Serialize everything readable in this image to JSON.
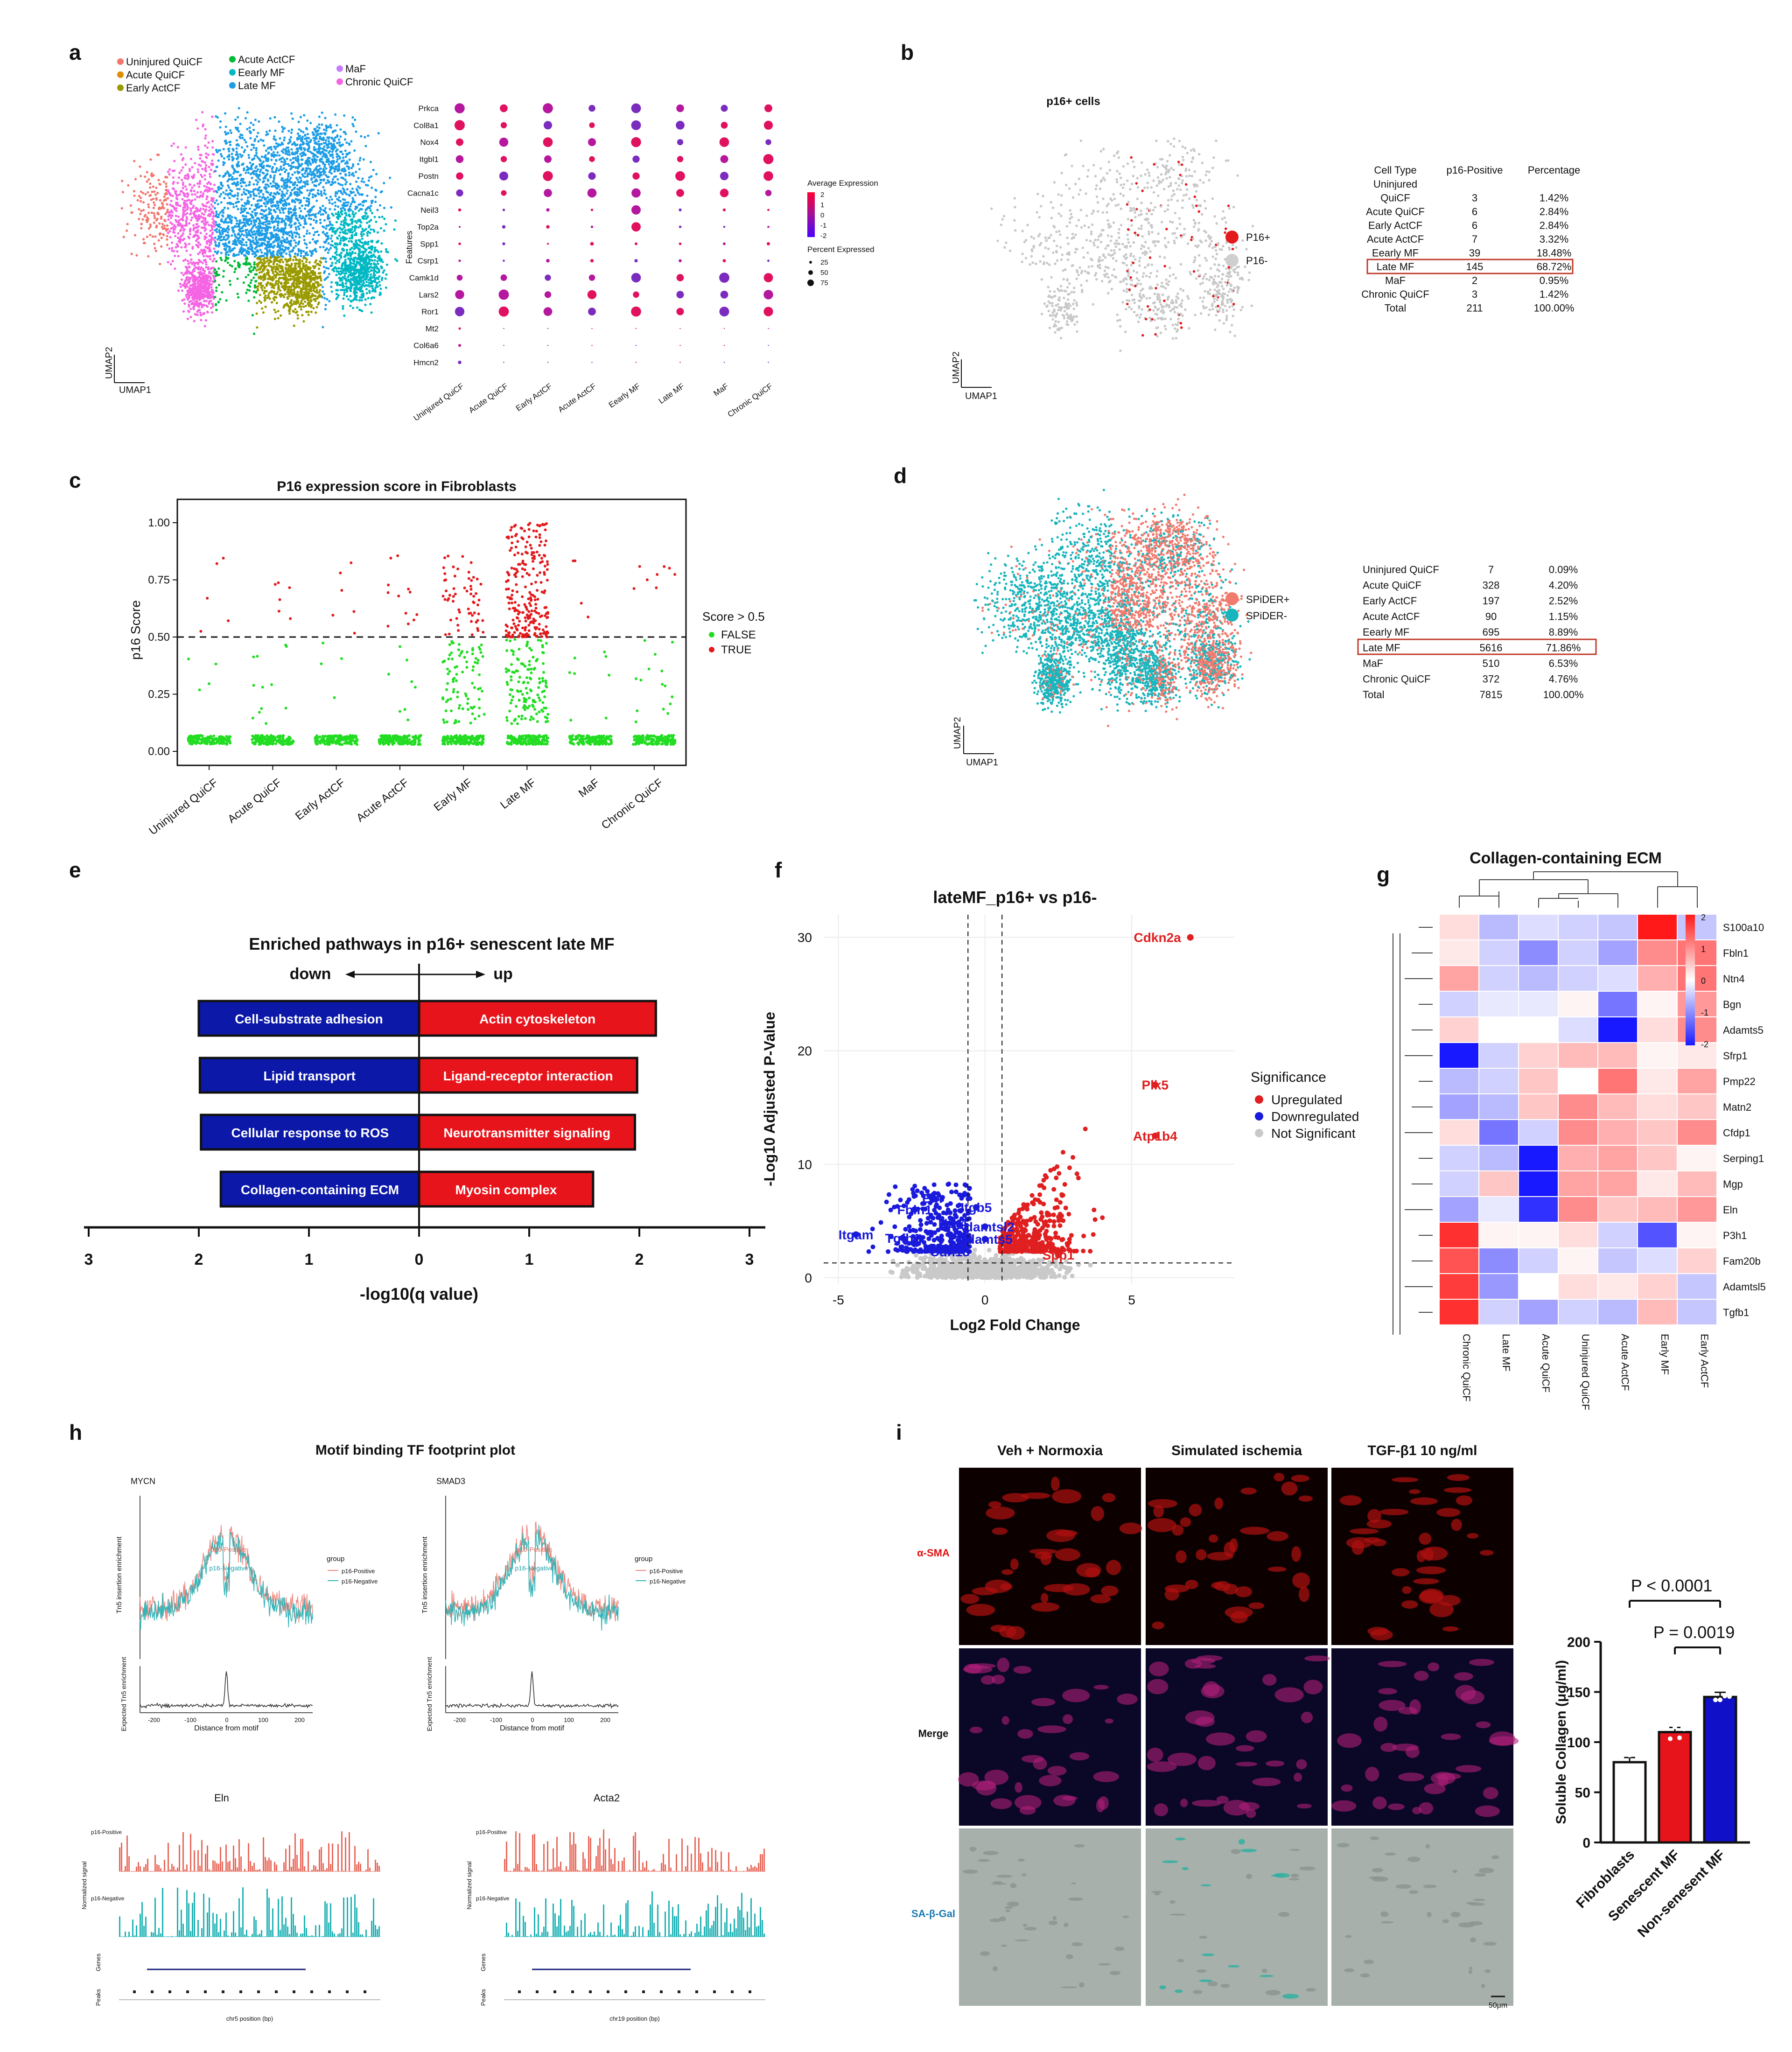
{
  "panels": {
    "a": "a",
    "b": "b",
    "c": "c",
    "d": "d",
    "e": "e",
    "f": "f",
    "g": "g",
    "h": "h",
    "i": "i"
  },
  "panel_a": {
    "legend": [
      "Uninjured QuiCF",
      "Acute QuiCF",
      "Early ActCF",
      "Acute ActCF",
      "Eearly MF",
      "Late MF",
      "MaF",
      "Chronic QuiCF"
    ],
    "legend_colors": [
      "#f2766d",
      "#de8c00",
      "#9a9a00",
      "#00ba38",
      "#00b8c3",
      "#1e9de6",
      "#c77cff",
      "#f564e3"
    ],
    "umap_x": "UMAP1",
    "umap_y": "UMAP2",
    "dot_genes": [
      "Prkca",
      "Col8a1",
      "Nox4",
      "Itgbl1",
      "Postn",
      "Cacna1c",
      "Neil3",
      "Top2a",
      "Spp1",
      "Csrp1",
      "Camk1d",
      "Lars2",
      "Ror1",
      "Mt2",
      "Col6a6",
      "Hmcn2"
    ],
    "dot_groups": [
      "Uninjured QuiCF",
      "Acute QuiCF",
      "Early ActCF",
      "Acute ActCF",
      "Eearly MF",
      "Late MF",
      "MaF",
      "Chronic QuiCF"
    ],
    "features_label": "Features",
    "avg_expr_title": "Average Expression",
    "avg_expr_ticks": [
      "2",
      "1",
      "0",
      "-1",
      "-2"
    ],
    "pct_title": "Percent Expressed",
    "pct_ticks": [
      "25",
      "50",
      "75"
    ]
  },
  "panel_b": {
    "title": "p16+ cells",
    "legend": [
      "P16+",
      "P16-"
    ],
    "umap_x": "UMAP1",
    "umap_y": "UMAP2",
    "table_header": [
      "Cell Type",
      "p16-Positive",
      "Percentage"
    ],
    "table_rows": [
      [
        "Uninjured",
        "",
        ""
      ],
      [
        "QuiCF",
        "3",
        "1.42%"
      ],
      [
        "Acute QuiCF",
        "6",
        "2.84%"
      ],
      [
        "Early ActCF",
        "6",
        "2.84%"
      ],
      [
        "Acute ActCF",
        "7",
        "3.32%"
      ],
      [
        "Eearly MF",
        "39",
        "18.48%"
      ],
      [
        "Late MF",
        "145",
        "68.72%"
      ],
      [
        "MaF",
        "2",
        "0.95%"
      ],
      [
        "Chronic QuiCF",
        "3",
        "1.42%"
      ],
      [
        "Total",
        "211",
        "100.00%"
      ]
    ]
  },
  "panel_d": {
    "legend": [
      "SPiDER+",
      "SPiDER-"
    ],
    "umap_x": "UMAP1",
    "umap_y": "UMAP2",
    "table_rows": [
      [
        "Uninjured QuiCF",
        "7",
        "0.09%"
      ],
      [
        "Acute QuiCF",
        "328",
        "4.20%"
      ],
      [
        "Early ActCF",
        "197",
        "2.52%"
      ],
      [
        "Acute ActCF",
        "90",
        "1.15%"
      ],
      [
        "Eearly MF",
        "695",
        "8.89%"
      ],
      [
        "Late MF",
        "5616",
        "71.86%"
      ],
      [
        "MaF",
        "510",
        "6.53%"
      ],
      [
        "Chronic QuiCF",
        "372",
        "4.76%"
      ],
      [
        "Total",
        "7815",
        "100.00%"
      ]
    ]
  },
  "panel_e": {
    "title": "Enriched pathways in p16+ senescent late MF",
    "down_label": "down",
    "up_label": "up",
    "xlabel": "-log10(q value)"
  },
  "panel_f": {
    "title": "lateMF_p16+ vs p16-",
    "xlabel": "Log2 Fold Change",
    "ylabel": "-Log10 Adjusted P-Value",
    "legend_title": "Significance",
    "legend": [
      "Upregulated",
      "Downregulated",
      "Not Significant"
    ],
    "up_genes": [
      "Cdkn2a",
      "Plk5",
      "Atp1b4",
      "Spp1"
    ],
    "down_genes": [
      "Eln",
      "Fbln1",
      "Itgb5",
      "Ntn4",
      "Adamtsl2",
      "Itgam",
      "Tgfb1",
      "Adamts5",
      "Cdh13"
    ]
  },
  "panel_g": {
    "title": "Collagen-containing ECM",
    "rows": [
      "S100a10",
      "Fbln1",
      "Ntn4",
      "Bgn",
      "Adamts5",
      "Sfrp1",
      "Pmp22",
      "Matn2",
      "Cfdp1",
      "Serping1",
      "Mgp",
      "Eln",
      "P3h1",
      "Fam20b",
      "Adamtsl5",
      "Tgfb1"
    ],
    "cols": [
      "Chronic QuiCF",
      "Late MF",
      "Acute QuiCF",
      "Uninjured QuiCF",
      "Acute ActCF",
      "Early MF",
      "Early ActCF"
    ],
    "scale_ticks": [
      "2",
      "1",
      "0",
      "-1",
      "-2"
    ]
  },
  "panel_h": {
    "title": "Motif binding TF footprint plot",
    "motif1": "MYCN",
    "motif2": "SMAD3",
    "xlabel": "Distance from motif",
    "ylabel_top": "Tn5 insertion enrichment",
    "ylabel_bottom": "Expected Tn5 enrichment",
    "legend_title": "group",
    "legend": [
      "p16-Positive",
      "p16-Negative"
    ],
    "track1": "Eln",
    "track2": "Acta2",
    "track_pos": "p16-Positive",
    "track_neg": "p16-Negative",
    "genes_label": "Genes",
    "peaks_label": "Peaks",
    "chr1_label": "chr5 position (bp)",
    "chr2_label": "chr19 position (bp)",
    "norm_label": "Normalized signal"
  },
  "panel_i": {
    "columns": [
      "Veh + Normoxia",
      "Simulated ischemia",
      "TGF-β1 10 ng/ml"
    ],
    "rows": [
      "α-SMA",
      "Merge",
      "SA-β-Gal"
    ],
    "scale_bar": "50μm",
    "bar_ylabel": "Soluble Collagen (μg/ml)",
    "p1": "P < 0.0001",
    "p2": "P = 0.0019"
  },
  "chart_data": [
    {
      "type": "scatter",
      "title": "P16 expression score in Fibroblasts",
      "xlabel": "",
      "ylabel": "p16 Score",
      "categories": [
        "Uninjured QuiCF",
        "Acute QuiCF",
        "Early ActCF",
        "Acute ActCF",
        "Early MF",
        "Late MF",
        "MaF",
        "Chronic QuiCF"
      ],
      "ylim": [
        0,
        1.0
      ],
      "yticks": [
        "0.00",
        "0.25",
        "0.50",
        "0.75",
        "1.00"
      ],
      "threshold": 0.5,
      "legend_title": "Score > 0.5",
      "legend": [
        "FALSE",
        "TRUE"
      ],
      "true_counts": [
        5,
        6,
        6,
        12,
        60,
        250,
        4,
        8
      ],
      "false_counts": [
        4,
        12,
        4,
        8,
        90,
        140,
        8,
        15
      ]
    },
    {
      "type": "bar",
      "title": "Enriched pathways in p16+ senescent late MF",
      "xlabel": "-log10(q value)",
      "xticks": [
        "3",
        "2",
        "1",
        "0",
        "1",
        "2",
        "3"
      ],
      "series": [
        {
          "name": "down",
          "categories": [
            "Cell-substrate adhesion",
            "Lipid transport",
            "Cellular response to ROS",
            "Collagen-containing ECM"
          ],
          "values": [
            2.0,
            1.99,
            1.98,
            1.8
          ]
        },
        {
          "name": "up",
          "categories": [
            "Actin cytoskeleton",
            "Ligand-receptor interaction",
            "Neurotransmitter signaling",
            "Myosin complex"
          ],
          "values": [
            2.15,
            1.98,
            1.96,
            1.58
          ]
        }
      ]
    },
    {
      "type": "scatter",
      "title": "lateMF_p16+ vs p16-",
      "xlabel": "Log2 Fold Change",
      "ylabel": "-Log10 Adjusted P-Value",
      "xlim": [
        -5.5,
        8.5
      ],
      "ylim": [
        -0.5,
        32
      ],
      "xticks": [
        -5,
        0,
        5
      ],
      "yticks": [
        0,
        10,
        20,
        30
      ],
      "labeled_points": [
        {
          "label": "Cdkn2a",
          "x": 7.0,
          "y": 30.0
        },
        {
          "label": "Plk5",
          "x": 5.8,
          "y": 17.0
        },
        {
          "label": "Atp1b4",
          "x": 5.8,
          "y": 12.5
        },
        {
          "label": "Spp1",
          "x": 2.5,
          "y": 2.0
        },
        {
          "label": "Eln",
          "x": -1.8,
          "y": 7.0
        },
        {
          "label": "Fbln1",
          "x": -2.4,
          "y": 6.0
        },
        {
          "label": "Itgb5",
          "x": -0.3,
          "y": 6.2
        },
        {
          "label": "Ntn4",
          "x": -1.1,
          "y": 4.8
        },
        {
          "label": "Adamtsl2",
          "x": 0.0,
          "y": 4.5
        },
        {
          "label": "Itgam",
          "x": -4.4,
          "y": 3.8
        },
        {
          "label": "Tgfb1",
          "x": -2.8,
          "y": 3.5
        },
        {
          "label": "Adamts5",
          "x": 0.0,
          "y": 3.4
        },
        {
          "label": "Cdh13",
          "x": -1.2,
          "y": 2.3
        }
      ]
    },
    {
      "type": "bar",
      "title": "",
      "ylabel": "Soluble Collagen (μg/ml)",
      "categories": [
        "Fibroblasts",
        "Senescent MF",
        "Non-senesent MF"
      ],
      "values": [
        80,
        110,
        145
      ],
      "ylim": [
        0,
        200
      ],
      "yticks": [
        0,
        50,
        100,
        150,
        200
      ],
      "colors": [
        "#ffffff",
        "#e8141b",
        "#1010c8"
      ]
    }
  ]
}
